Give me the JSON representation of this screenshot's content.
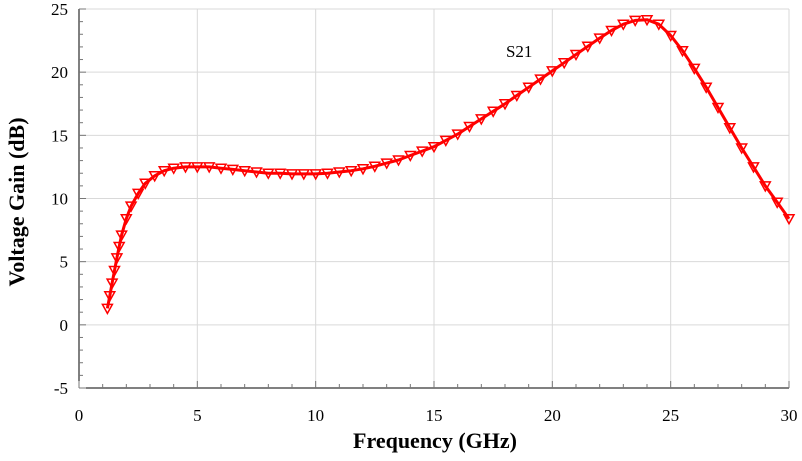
{
  "chart_data": {
    "type": "line",
    "title": "",
    "xlabel": "Frequency (GHz)",
    "ylabel": "Voltage Gain (dB)",
    "xlim": [
      0,
      30
    ],
    "ylim": [
      -5,
      25
    ],
    "xticks": [
      "0",
      "5",
      "10",
      "15",
      "20",
      "25",
      "30"
    ],
    "yticks": [
      "-5",
      "0",
      "5",
      "10",
      "15",
      "20",
      "25"
    ],
    "grid": true,
    "marker": "triangle-down",
    "series_color": "#ff0000",
    "annotations": [
      {
        "text": "S21",
        "x": 18.6,
        "y": 21.2
      }
    ],
    "series": [
      {
        "x": [
          1.2,
          1.3,
          1.4,
          1.5,
          1.6,
          1.7,
          1.8,
          2.0,
          2.2,
          2.5,
          2.8,
          3.2,
          3.6,
          4.0,
          4.5,
          5.0,
          5.5,
          6.0,
          6.5,
          7.0,
          7.5,
          8.0,
          8.5,
          9.0,
          9.5,
          10.0,
          10.5,
          11.0,
          11.5,
          12.0,
          12.5,
          13.0,
          13.5,
          14.0,
          14.5,
          15.0,
          15.5,
          16.0,
          16.5,
          17.0,
          17.5,
          18.0,
          18.5,
          19.0,
          19.5,
          20.0,
          20.5,
          21.0,
          21.5,
          22.0,
          22.5,
          23.0,
          23.5,
          24.0,
          24.5,
          25.0,
          25.5,
          26.0,
          26.5,
          27.0,
          27.5,
          28.0,
          28.5,
          29.0,
          29.5,
          30.0
        ],
        "y": [
          1.3,
          2.3,
          3.3,
          4.3,
          5.3,
          6.2,
          7.1,
          8.4,
          9.4,
          10.4,
          11.2,
          11.8,
          12.2,
          12.4,
          12.5,
          12.5,
          12.5,
          12.4,
          12.3,
          12.2,
          12.1,
          12.0,
          12.0,
          11.95,
          11.95,
          11.95,
          12.0,
          12.1,
          12.2,
          12.35,
          12.55,
          12.8,
          13.05,
          13.4,
          13.75,
          14.1,
          14.6,
          15.1,
          15.7,
          16.3,
          16.9,
          17.5,
          18.15,
          18.8,
          19.45,
          20.1,
          20.75,
          21.4,
          22.05,
          22.7,
          23.3,
          23.8,
          24.1,
          24.15,
          23.8,
          22.9,
          21.7,
          20.3,
          18.8,
          17.2,
          15.6,
          14.0,
          12.5,
          11.0,
          9.7,
          8.4
        ]
      }
    ]
  }
}
